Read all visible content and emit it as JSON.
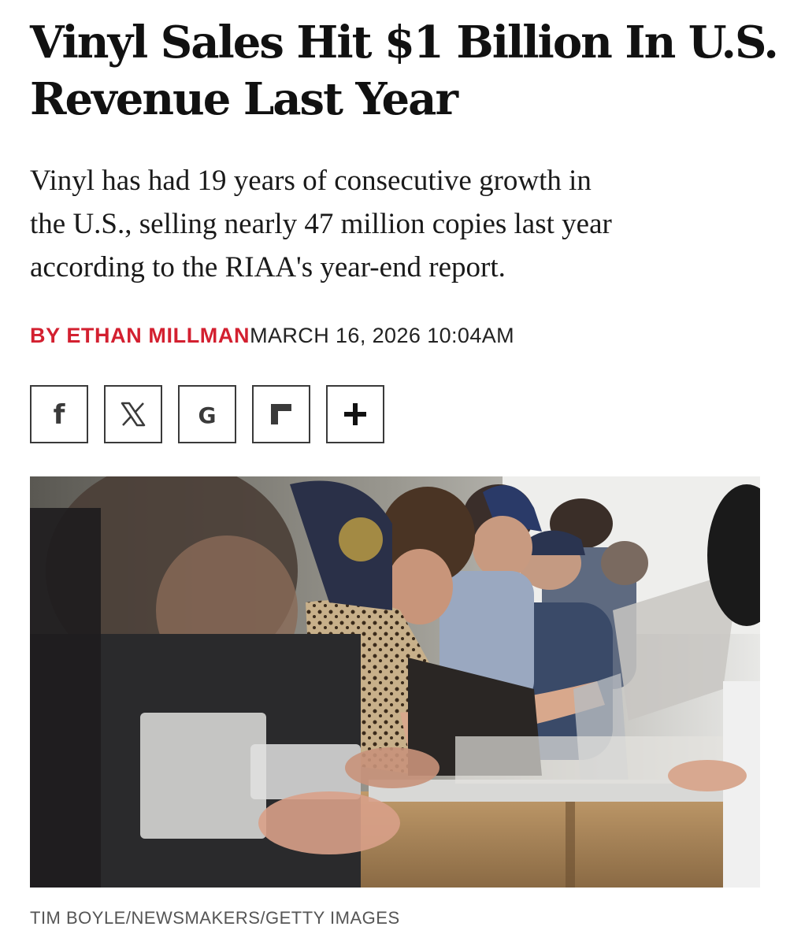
{
  "article": {
    "headline_lines": [
      "Vinyl Sales Hit $1 Billion In U.S.",
      "Revenue Last Year"
    ],
    "dek_lines": [
      "Vinyl has had 19 years of consecutive growth in",
      "the U.S., selling nearly 47 million copies last year",
      "according to the RIAA's year-end report."
    ],
    "byline": {
      "author": "BY ETHAN MILLMAN",
      "datetime": "MARCH 16, 2026 10:04AM"
    },
    "share_buttons": [
      {
        "name": "facebook-share-button",
        "icon": "facebook-icon",
        "glyph": "f"
      },
      {
        "name": "x-share-button",
        "icon": "x-logo-icon",
        "glyph": "X"
      },
      {
        "name": "google-share-button",
        "icon": "google-icon",
        "glyph": "G"
      },
      {
        "name": "flipboard-share-button",
        "icon": "flipboard-icon",
        "glyph": ""
      },
      {
        "name": "more-share-button",
        "icon": "plus-icon",
        "glyph": "+"
      }
    ],
    "photo": {
      "icon": "photo-of-people-browsing-vinyl-records"
    },
    "photo_credit": "TIM BOYLE/NEWSMAKERS/GETTY IMAGES"
  },
  "colors": {
    "accent": "#d32030",
    "text": "#111111",
    "muted": "#555555"
  }
}
